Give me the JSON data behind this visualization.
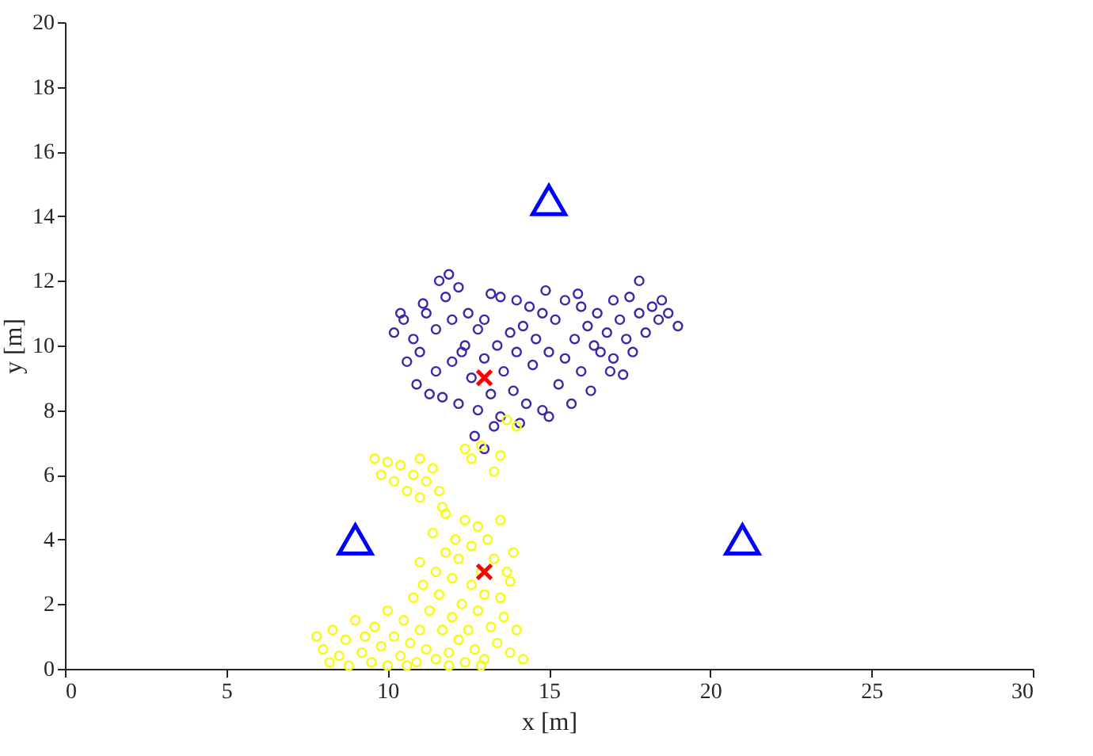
{
  "chart_data": {
    "type": "scatter",
    "xlabel": "x [m]",
    "ylabel": "y [m]",
    "xlim": [
      0,
      30
    ],
    "ylim": [
      0,
      20
    ],
    "xticks": [
      0,
      5,
      10,
      15,
      20,
      25,
      30
    ],
    "yticks": [
      0,
      2,
      4,
      6,
      8,
      10,
      12,
      14,
      16,
      18,
      20
    ],
    "grid": false,
    "series": [
      {
        "color": "#3e26a8",
        "marker": "circle",
        "x": [
          10.2,
          10.4,
          10.6,
          10.8,
          10.9,
          11,
          11.2,
          11.3,
          11.5,
          11.5,
          11.6,
          11.8,
          11.9,
          12,
          12,
          12.2,
          12.2,
          12.4,
          12.5,
          12.6,
          12.8,
          12.8,
          13,
          13,
          13.2,
          13.3,
          13.4,
          13.5,
          13.6,
          13.8,
          13.9,
          14,
          14,
          14.2,
          14.3,
          14.4,
          14.5,
          14.6,
          14.8,
          14.8,
          15,
          15,
          15.2,
          15.3,
          15.5,
          15.5,
          15.7,
          15.8,
          16,
          16,
          16.2,
          16.3,
          16.5,
          16.6,
          16.8,
          17,
          17,
          17.2,
          17.4,
          17.5,
          17.6,
          17.8,
          17.8,
          18,
          18.2,
          18.4,
          18.5,
          18.7,
          19,
          16.9,
          12.7,
          13,
          13.5,
          11.1,
          10.5,
          11.7,
          14.1,
          15.9,
          14.9,
          13.2,
          12.3,
          16.4,
          17.3
        ],
        "values": [
          10.4,
          11,
          9.5,
          10.2,
          8.8,
          9.8,
          11,
          8.5,
          9.2,
          10.5,
          12,
          11.5,
          12.2,
          10.8,
          9.5,
          8.2,
          11.8,
          10,
          11,
          9,
          8,
          10.5,
          9.6,
          10.8,
          8.5,
          7.5,
          10,
          11.5,
          9.2,
          10.4,
          8.6,
          11.4,
          9.8,
          10.6,
          8.2,
          11.2,
          9.4,
          10.2,
          8,
          11,
          9.8,
          7.8,
          10.8,
          8.8,
          11.4,
          9.6,
          8.2,
          10.2,
          11.2,
          9.2,
          10.6,
          8.6,
          11,
          9.8,
          10.4,
          11.4,
          9.6,
          10.8,
          10.2,
          11.5,
          9.8,
          12,
          11,
          10.4,
          11.2,
          10.8,
          11.4,
          11,
          10.6,
          9.2,
          7.2,
          6.8,
          7.8,
          11.3,
          10.8,
          8.4,
          7.6,
          11.6,
          11.7,
          11.6,
          9.8,
          10,
          9.1
        ]
      },
      {
        "color": "#f9fb0e",
        "marker": "circle",
        "x": [
          7.8,
          8,
          8.2,
          8.3,
          8.5,
          8.7,
          8.8,
          9,
          9.2,
          9.3,
          9.5,
          9.6,
          9.8,
          10,
          10,
          10.2,
          10.4,
          10.5,
          10.7,
          10.8,
          10.9,
          11,
          11,
          11.1,
          11.2,
          11.3,
          11.4,
          11.5,
          11.5,
          11.6,
          11.7,
          11.8,
          11.8,
          11.9,
          12,
          12,
          12.1,
          12.2,
          12.2,
          12.3,
          12.4,
          12.4,
          12.5,
          12.6,
          12.6,
          12.7,
          12.8,
          12.8,
          12.9,
          13,
          13,
          13.1,
          13.2,
          13.3,
          13.4,
          13.5,
          13.5,
          13.6,
          13.7,
          13.8,
          13.8,
          14,
          14.2,
          13.9,
          12.9,
          11.9,
          10.6,
          9.6,
          9.8,
          10,
          10.2,
          10.4,
          10.6,
          10.8,
          11,
          11,
          11.2,
          11.4,
          11.6,
          11.7,
          12.4,
          12.6,
          12.9,
          13.3,
          13.5,
          14,
          13.7
        ],
        "values": [
          1,
          0.6,
          0.2,
          1.2,
          0.4,
          0.9,
          0.1,
          1.5,
          0.5,
          1,
          0.2,
          1.3,
          0.7,
          1.8,
          0.1,
          1,
          0.4,
          1.5,
          0.8,
          2.2,
          0.2,
          1.2,
          3.3,
          2.6,
          0.6,
          1.8,
          4.2,
          3,
          0.3,
          2.3,
          1.2,
          3.6,
          4.8,
          0.5,
          2.8,
          1.6,
          4,
          0.9,
          3.4,
          2,
          4.6,
          0.2,
          1.2,
          2.6,
          3.8,
          0.6,
          4.4,
          1.8,
          3,
          0.3,
          2.3,
          4,
          1.3,
          3.4,
          0.8,
          2.2,
          4.6,
          1.6,
          3,
          0.5,
          2.7,
          1.2,
          0.3,
          3.6,
          0.1,
          0.1,
          0.1,
          6.5,
          6,
          6.4,
          5.8,
          6.3,
          5.5,
          6,
          5.3,
          6.5,
          5.8,
          6.2,
          5.5,
          5,
          6.8,
          6.5,
          6.9,
          6.1,
          6.6,
          7.5,
          7.7
        ]
      },
      {
        "color": "#0000ff",
        "marker": "triangle",
        "x": [
          9,
          15,
          21
        ],
        "values": [
          4,
          14.5,
          4
        ]
      },
      {
        "color": "#ff0000",
        "marker": "cross",
        "x": [
          13,
          13
        ],
        "values": [
          9,
          3
        ]
      }
    ]
  }
}
